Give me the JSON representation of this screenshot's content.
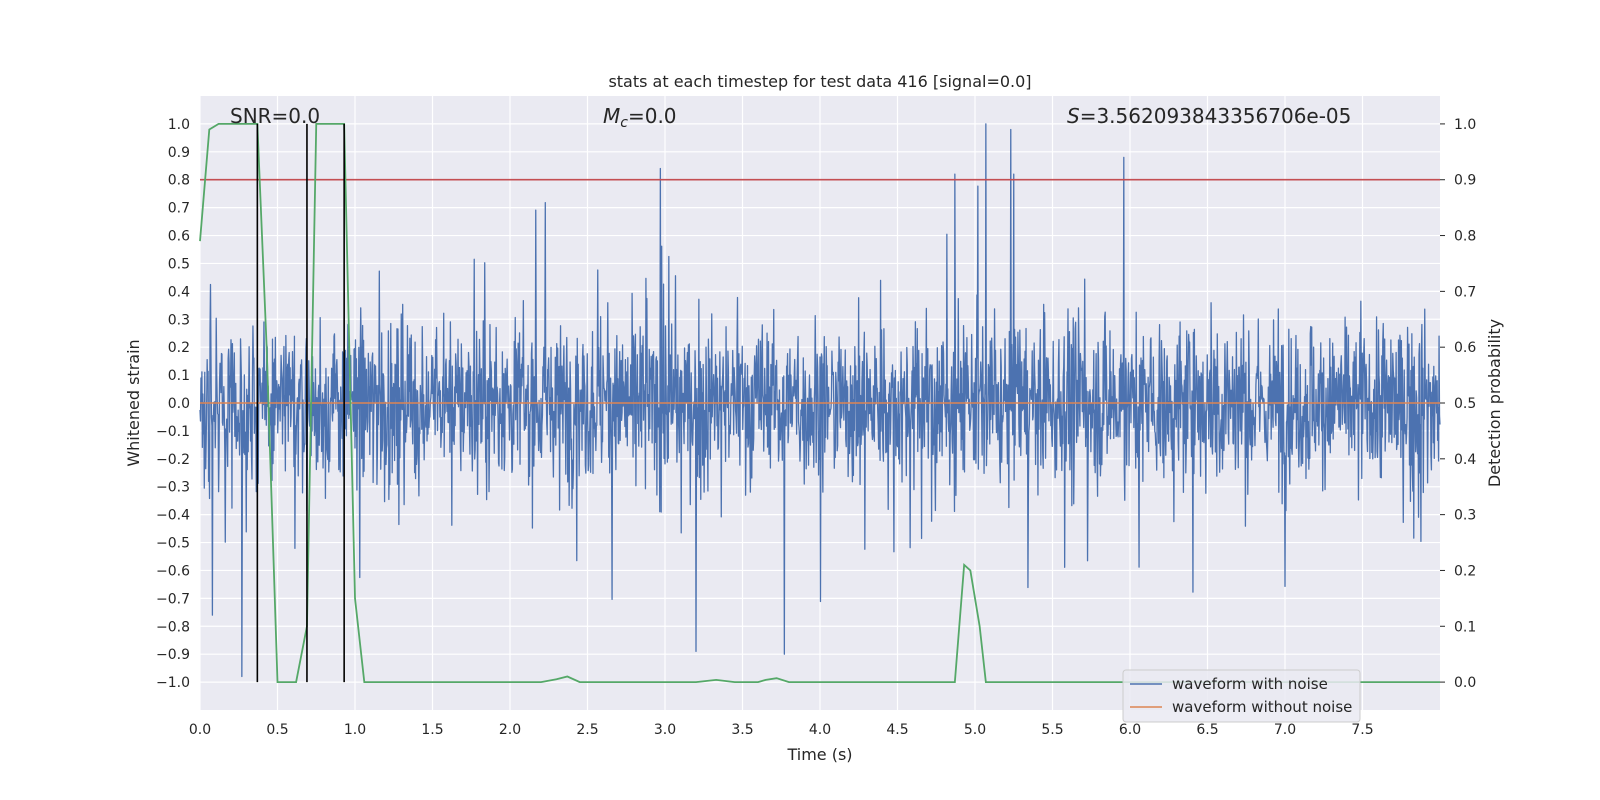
{
  "chart_data": {
    "type": "line",
    "title": "stats at each timestep for test data 416 [signal=0.0]",
    "xlabel": "Time (s)",
    "ylabel": "Whitened strain",
    "y2label": "Detection probability",
    "xlim": [
      0.0,
      8.0
    ],
    "ylim": [
      -1.1,
      1.1
    ],
    "y2lim": [
      -0.05,
      1.05
    ],
    "grid": true,
    "x_ticks": [
      "0.0",
      "0.5",
      "1.0",
      "1.5",
      "2.0",
      "2.5",
      "3.0",
      "3.5",
      "4.0",
      "4.5",
      "5.0",
      "5.5",
      "6.0",
      "6.5",
      "7.0",
      "7.5"
    ],
    "y_ticks": [
      "1.0",
      "0.9",
      "0.8",
      "0.7",
      "0.6",
      "0.5",
      "0.4",
      "0.3",
      "0.2",
      "0.1",
      "0.0",
      "−0.1",
      "−0.2",
      "−0.3",
      "−0.4",
      "−0.5",
      "−0.6",
      "−0.7",
      "−0.8",
      "−0.9",
      "−1.0"
    ],
    "y2_ticks": [
      "1.0",
      "0.9",
      "0.8",
      "0.7",
      "0.6",
      "0.5",
      "0.4",
      "0.3",
      "0.2",
      "0.1",
      "0.0"
    ],
    "annotations": {
      "snr": "SNR=0.0",
      "mc_symbol": "M",
      "mc_sub": "c",
      "mc_rest": "=0.0",
      "s_symbol": "S",
      "s_rest": "=3.562093843356706e-05"
    },
    "threshold": 0.9,
    "vlines": [
      0.37,
      0.69,
      0.93
    ],
    "series": [
      {
        "name": "waveform with noise",
        "color": "#4c72b0",
        "axis": "left",
        "envelope": "noise band ~±0.2 core, spikes to ±0.85",
        "spikes": [
          {
            "x": 5.07,
            "y": 1.0
          },
          {
            "x": 5.96,
            "y": 0.88
          },
          {
            "x": 2.97,
            "y": 0.84
          },
          {
            "x": 4.87,
            "y": 0.82
          },
          {
            "x": 5.25,
            "y": 0.82
          },
          {
            "x": 3.77,
            "y": -0.9
          },
          {
            "x": 3.2,
            "y": -0.89
          },
          {
            "x": 0.27,
            "y": -0.98
          },
          {
            "x": 0.08,
            "y": -0.76
          }
        ]
      },
      {
        "name": "waveform without noise",
        "color": "#dd8452",
        "axis": "left",
        "values": "constant 0.0"
      },
      {
        "name": "detection probability",
        "color": "#55a868",
        "axis": "right",
        "x": [
          0.0,
          0.06,
          0.12,
          0.18,
          0.24,
          0.3,
          0.37,
          0.43,
          0.5,
          0.56,
          0.62,
          0.69,
          0.75,
          0.81,
          0.87,
          0.93,
          1.0,
          1.06,
          1.12,
          2.2,
          2.3,
          2.37,
          2.45,
          2.5,
          3.2,
          3.33,
          3.45,
          3.6,
          3.65,
          3.72,
          3.8,
          4.87,
          4.93,
          4.97,
          5.03,
          5.07,
          5.5,
          8.0
        ],
        "y": [
          0.79,
          0.99,
          1.0,
          1.0,
          1.0,
          1.0,
          1.0,
          0.6,
          0.0,
          0.0,
          0.0,
          0.1,
          1.0,
          1.0,
          1.0,
          1.0,
          0.15,
          0.0,
          0.0,
          0.0,
          0.005,
          0.01,
          0.0,
          0.0,
          0.0,
          0.004,
          0.0,
          0.0,
          0.004,
          0.007,
          0.0,
          0.0,
          0.21,
          0.2,
          0.1,
          0.0,
          0.0,
          0.0
        ]
      },
      {
        "name": "threshold",
        "color": "#c44e52",
        "axis": "right",
        "values": "constant 0.9"
      }
    ],
    "legend": {
      "placement": "lower-right",
      "entries": [
        {
          "label": "waveform with noise",
          "color": "#4c72b0"
        },
        {
          "label": "waveform without noise",
          "color": "#dd8452"
        }
      ]
    }
  },
  "colors": {
    "axes_bg": "#eaeaf2",
    "grid": "#ffffff",
    "noise": "#4c72b0",
    "clean": "#dd8452",
    "prob": "#55a868",
    "threshold": "#c44e52",
    "vline": "#000000"
  }
}
